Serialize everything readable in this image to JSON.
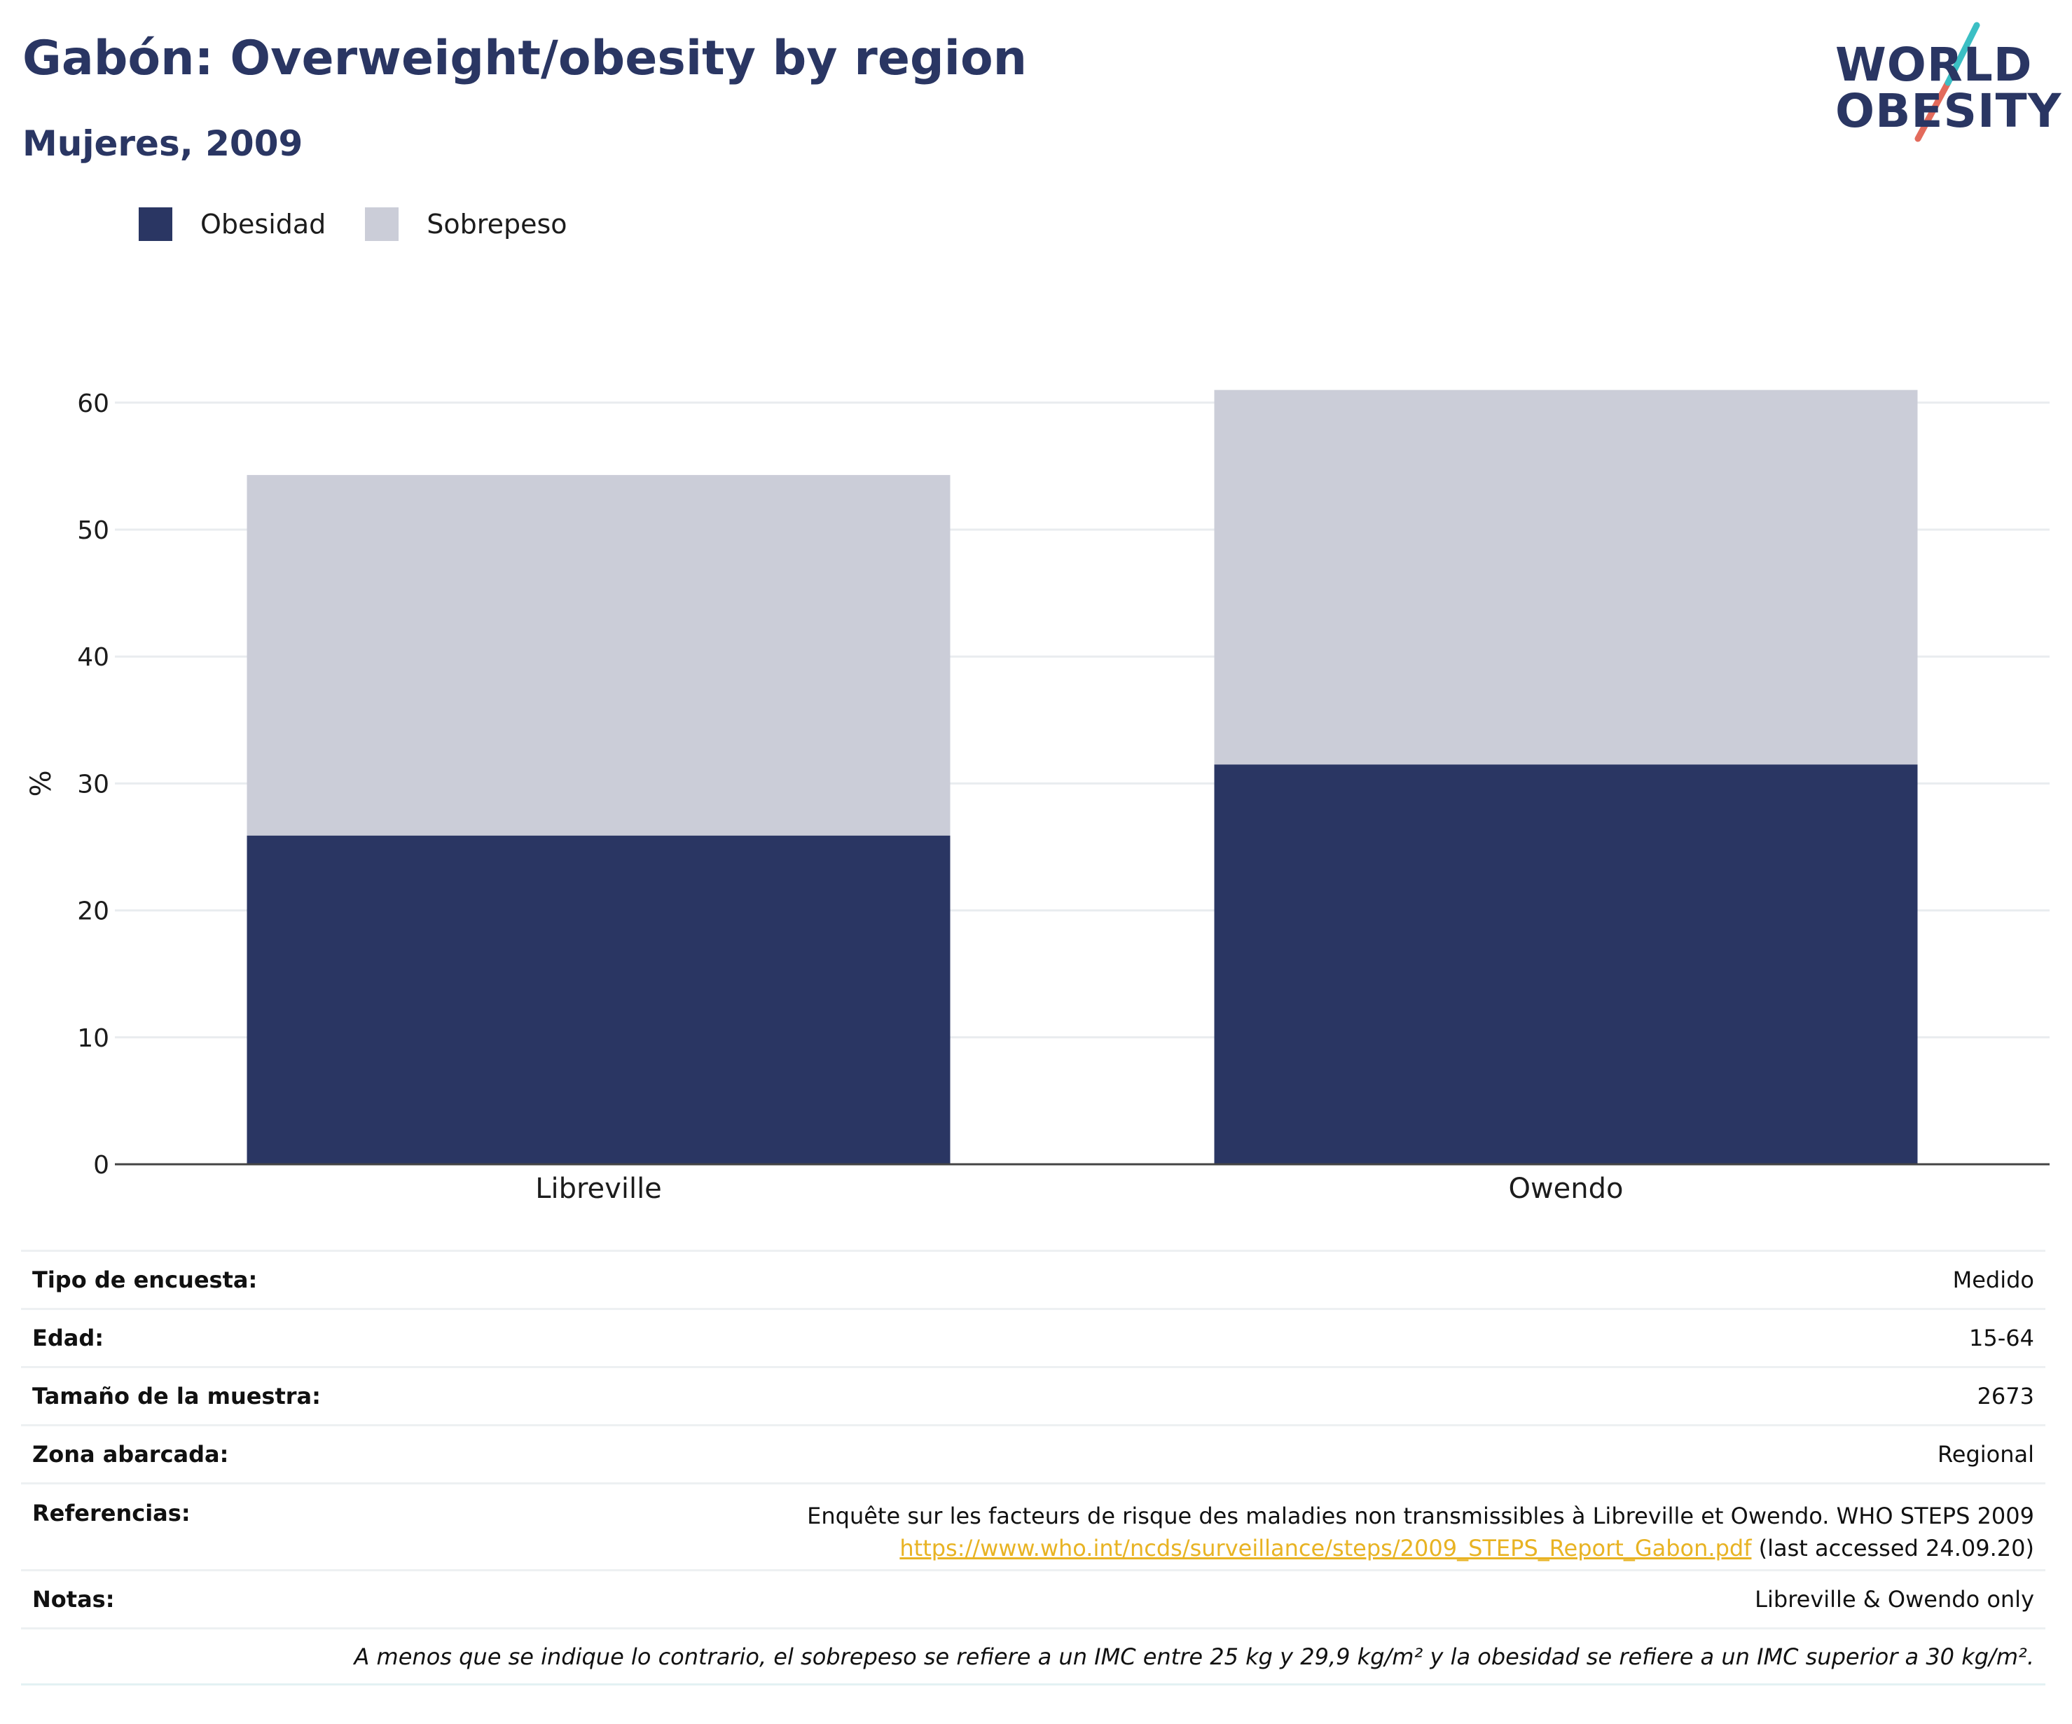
{
  "header": {
    "title": "Gabón: Overweight/obesity by region",
    "subtitle": "Mujeres, 2009"
  },
  "logo": {
    "line1": "WORLD",
    "line2": "OBESITY",
    "colors": {
      "text": "#2a3663",
      "slash_top": "#3bbfc4",
      "slash_bottom": "#e36b5c"
    }
  },
  "legend": [
    {
      "label": "Obesidad",
      "color": "#2a3663"
    },
    {
      "label": "Sobrepeso",
      "color": "#cbcdd8"
    }
  ],
  "chart_data": {
    "type": "bar",
    "stacked": true,
    "categories": [
      "Libreville",
      "Owendo"
    ],
    "series": [
      {
        "name": "Obesidad",
        "color": "#2a3663",
        "values": [
          25.9,
          31.5
        ]
      },
      {
        "name": "Sobrepeso",
        "color": "#cbcdd8",
        "values": [
          28.4,
          29.5
        ]
      }
    ],
    "ylabel": "%",
    "xlabel": "",
    "ylim": [
      0,
      63
    ],
    "yticks": [
      0,
      10,
      20,
      30,
      40,
      50,
      60
    ],
    "grid": true,
    "legend_position": "top-left"
  },
  "info": {
    "rows": [
      {
        "label": "Tipo de encuesta:",
        "value": "Medido"
      },
      {
        "label": "Edad:",
        "value": "15-64"
      },
      {
        "label": "Tamaño de la muestra:",
        "value": "2673"
      },
      {
        "label": "Zona abarcada:",
        "value": "Regional"
      }
    ],
    "references": {
      "label": "Referencias:",
      "text": "Enquête sur les facteurs de risque des maladies non transmissibles à Libreville et Owendo. WHO STEPS 2009",
      "link": "https://www.who.int/ncds/surveillance/steps/2009_STEPS_Report_Gabon.pdf",
      "accessed": "(last accessed 24.09.20)"
    },
    "notes": {
      "label": "Notas:",
      "value": "Libreville & Owendo only"
    },
    "footnote": "A menos que se indique lo contrario, el sobrepeso se refiere a un IMC entre 25 kg y 29,9 kg/m² y la obesidad se refiere a un IMC superior a 30 kg/m²."
  }
}
